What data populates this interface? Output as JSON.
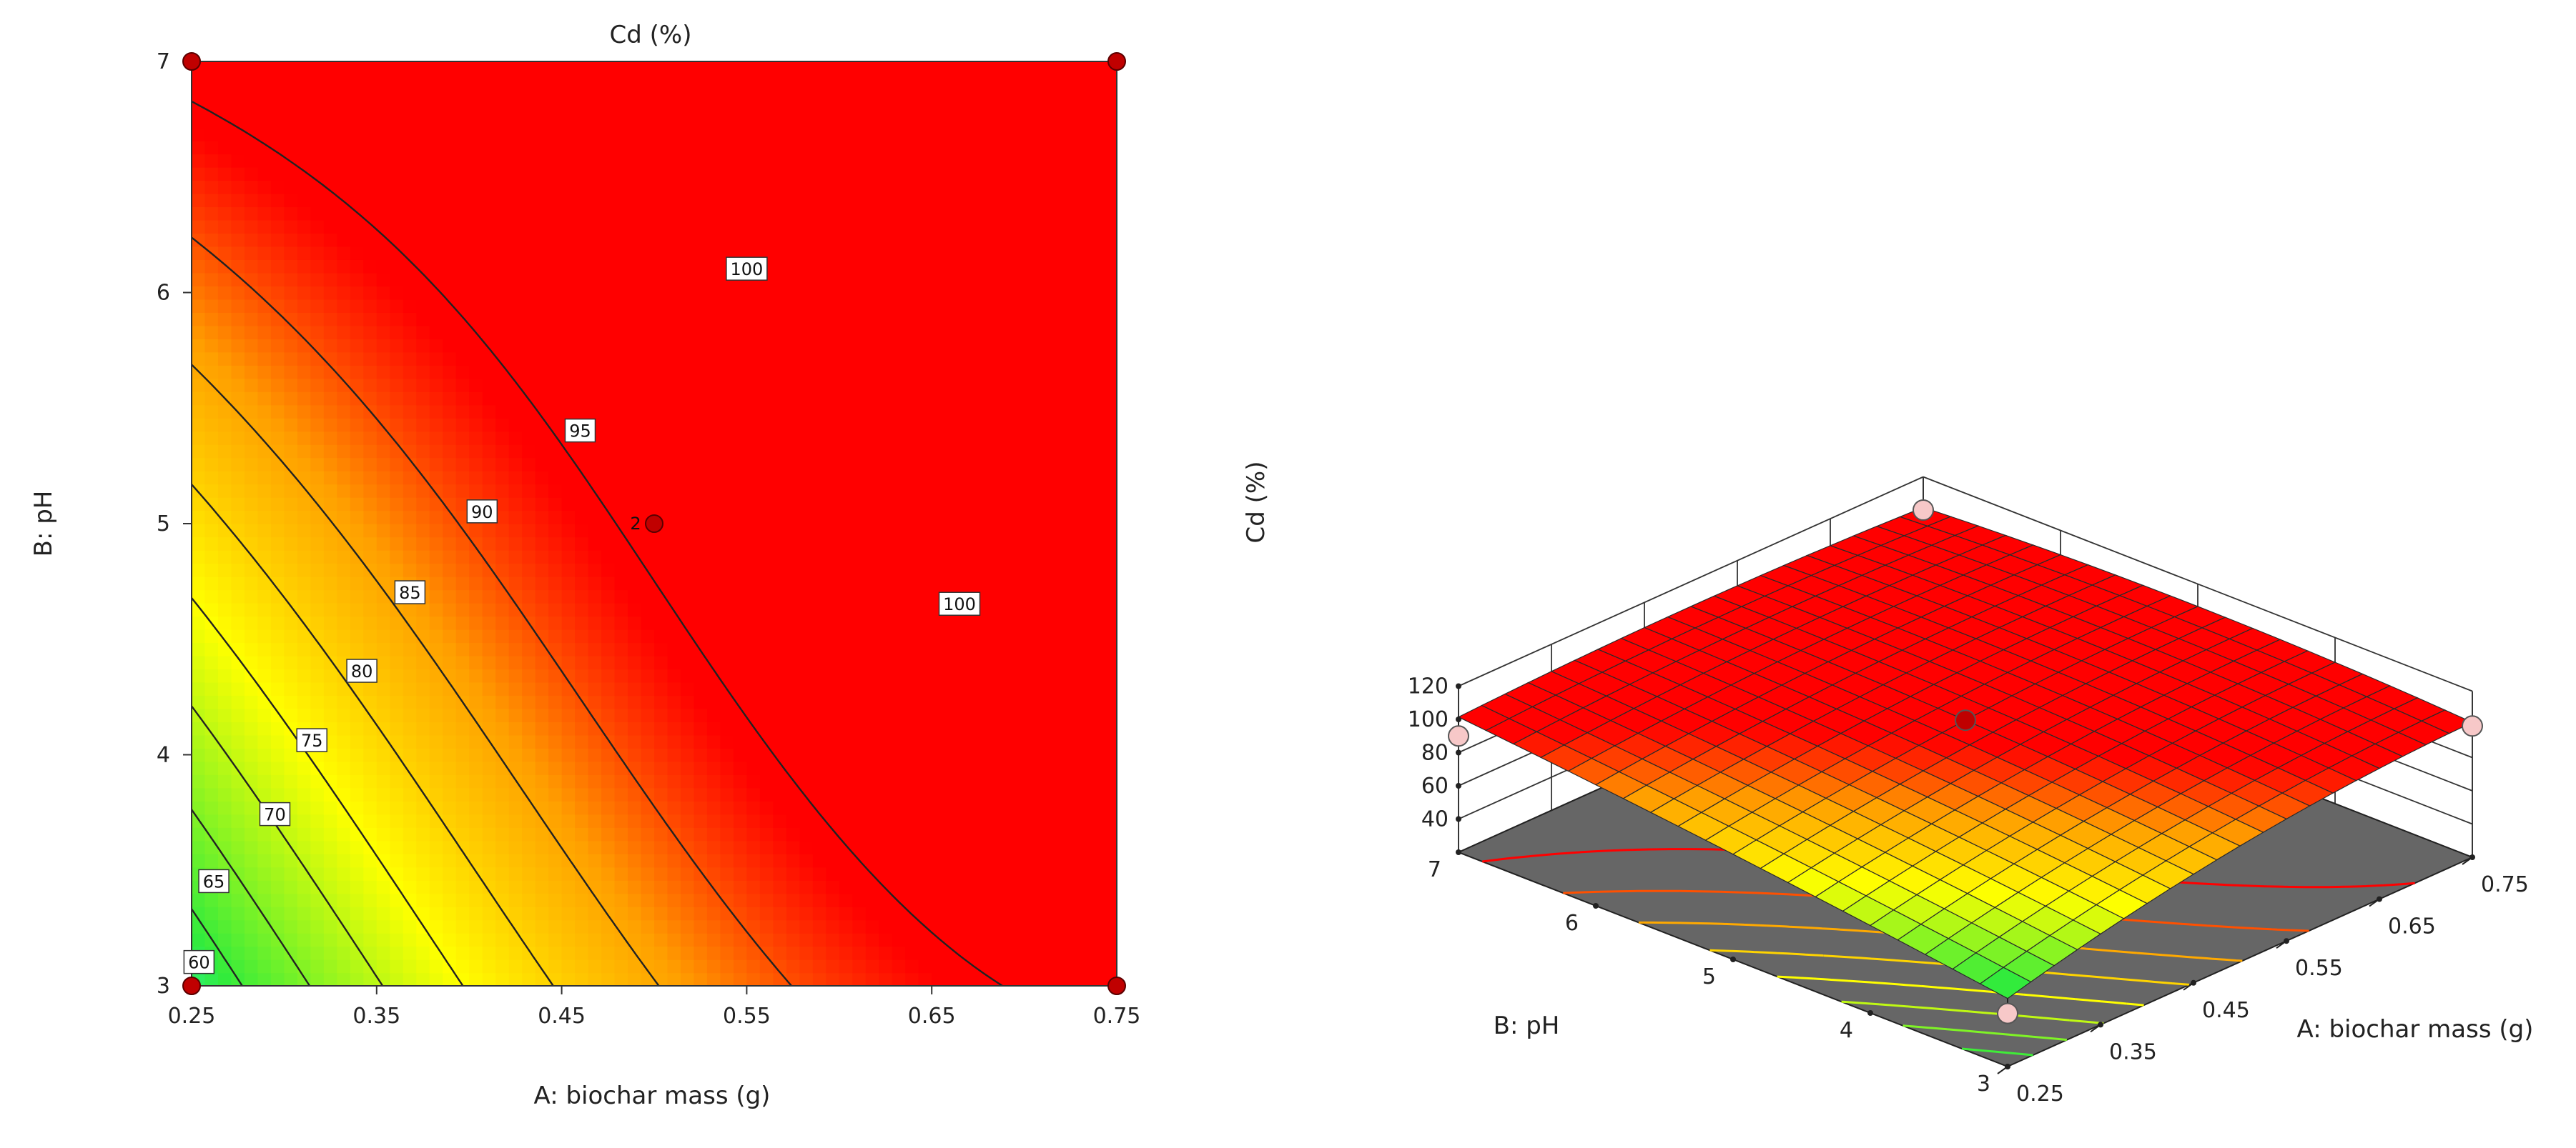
{
  "chart_data": [
    {
      "type": "contour",
      "title": "Cd (%)",
      "xlabel": "A: biochar mass (g)",
      "ylabel": "B: pH",
      "xlim": [
        0.25,
        0.75
      ],
      "ylim": [
        3,
        7
      ],
      "xticks": [
        "0.25",
        "0.35",
        "0.45",
        "0.55",
        "0.65",
        "0.75"
      ],
      "yticks": [
        "3",
        "4",
        "5",
        "6",
        "7"
      ],
      "contour_levels": [
        60,
        65,
        70,
        75,
        80,
        85,
        90,
        95,
        100
      ],
      "contour_labels": [
        {
          "text": "60",
          "x": 0.254,
          "y": 3.1
        },
        {
          "text": "65",
          "x": 0.262,
          "y": 3.45
        },
        {
          "text": "70",
          "x": 0.295,
          "y": 3.74
        },
        {
          "text": "75",
          "x": 0.315,
          "y": 4.06
        },
        {
          "text": "80",
          "x": 0.342,
          "y": 4.36
        },
        {
          "text": "85",
          "x": 0.368,
          "y": 4.7
        },
        {
          "text": "90",
          "x": 0.407,
          "y": 5.05
        },
        {
          "text": "95",
          "x": 0.46,
          "y": 5.4
        },
        {
          "text": "100",
          "x": 0.55,
          "y": 6.1
        },
        {
          "text": "100",
          "x": 0.665,
          "y": 4.65
        }
      ],
      "design_points": [
        {
          "x": 0.25,
          "y": 3
        },
        {
          "x": 0.25,
          "y": 7
        },
        {
          "x": 0.75,
          "y": 3
        },
        {
          "x": 0.75,
          "y": 7
        },
        {
          "x": 0.5,
          "y": 5,
          "label": "2"
        }
      ]
    },
    {
      "type": "surface3d",
      "zlabel": "Cd (%)",
      "xlabel": "A: biochar mass (g)",
      "ylabel": "B: pH",
      "xlim": [
        0.25,
        0.75
      ],
      "ylim": [
        3,
        7
      ],
      "zlim": [
        40,
        120
      ],
      "xticks": [
        "0.25",
        "0.35",
        "0.45",
        "0.55",
        "0.65",
        "0.75"
      ],
      "yticks": [
        "3",
        "4",
        "5",
        "6",
        "7"
      ],
      "zticks": [
        "40",
        "60",
        "80",
        "100",
        "120"
      ],
      "colorscale": [
        "#22ffff",
        "#33ee33",
        "#ffff00",
        "#ffa000",
        "#ff0000"
      ],
      "floor_color": "#666666",
      "points": [
        {
          "x": 0.25,
          "y": 3,
          "z": 52
        },
        {
          "x": 0.25,
          "y": 7,
          "z": 90
        },
        {
          "x": 0.75,
          "y": 3,
          "z": 99
        },
        {
          "x": 0.75,
          "y": 7,
          "z": 100
        },
        {
          "x": 0.5,
          "y": 5,
          "z": 101
        }
      ]
    }
  ]
}
